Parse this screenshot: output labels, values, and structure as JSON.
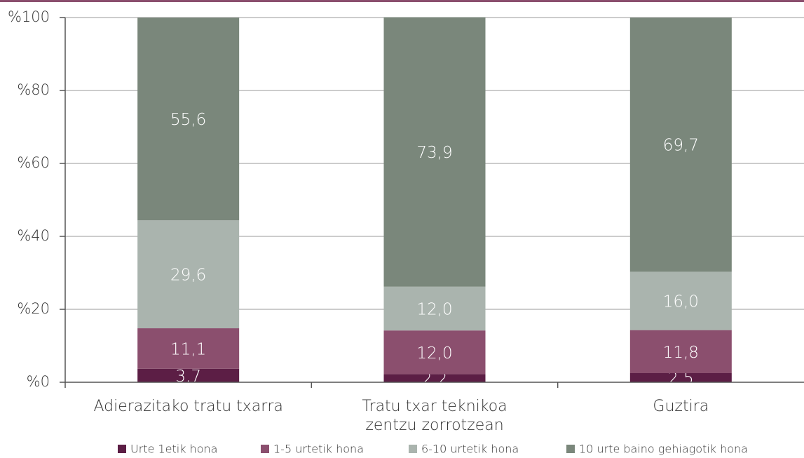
{
  "chart_data": {
    "type": "stacked_bar",
    "categories": [
      "Adierazitako tratu txarra",
      "Tratu txar teknikoa\nzentzu zorrotzean",
      "Guztira"
    ],
    "series": [
      {
        "name": "Urte 1etik hona",
        "color": "#5c1e45",
        "values": [
          3.7,
          2.2,
          2.5
        ],
        "value_labels": [
          "3,7",
          "2,2",
          "2,5"
        ]
      },
      {
        "name": "1-5 urtetik hona",
        "color": "#8b4f6e",
        "values": [
          11.1,
          12.0,
          11.8
        ],
        "value_labels": [
          "11,1",
          "12,0",
          "11,8"
        ]
      },
      {
        "name": "6-10 urtetik hona",
        "color": "#aab4ae",
        "values": [
          29.6,
          12.0,
          16.0
        ],
        "value_labels": [
          "29,6",
          "12,0",
          "16,0"
        ]
      },
      {
        "name": "10 urte baino gehiagotik hona",
        "color": "#7a877b",
        "values": [
          55.6,
          73.9,
          69.7
        ],
        "value_labels": [
          "55,6",
          "73,9",
          "69,7"
        ]
      }
    ],
    "ylim": [
      0,
      100
    ],
    "yticks": [
      {
        "value": 0,
        "label": "%0"
      },
      {
        "value": 20,
        "label": "%20"
      },
      {
        "value": 40,
        "label": "%40"
      },
      {
        "value": 60,
        "label": "%60"
      },
      {
        "value": 80,
        "label": "%80"
      },
      {
        "value": 100,
        "label": "%100"
      }
    ],
    "grid": true,
    "legend": "bottom"
  }
}
